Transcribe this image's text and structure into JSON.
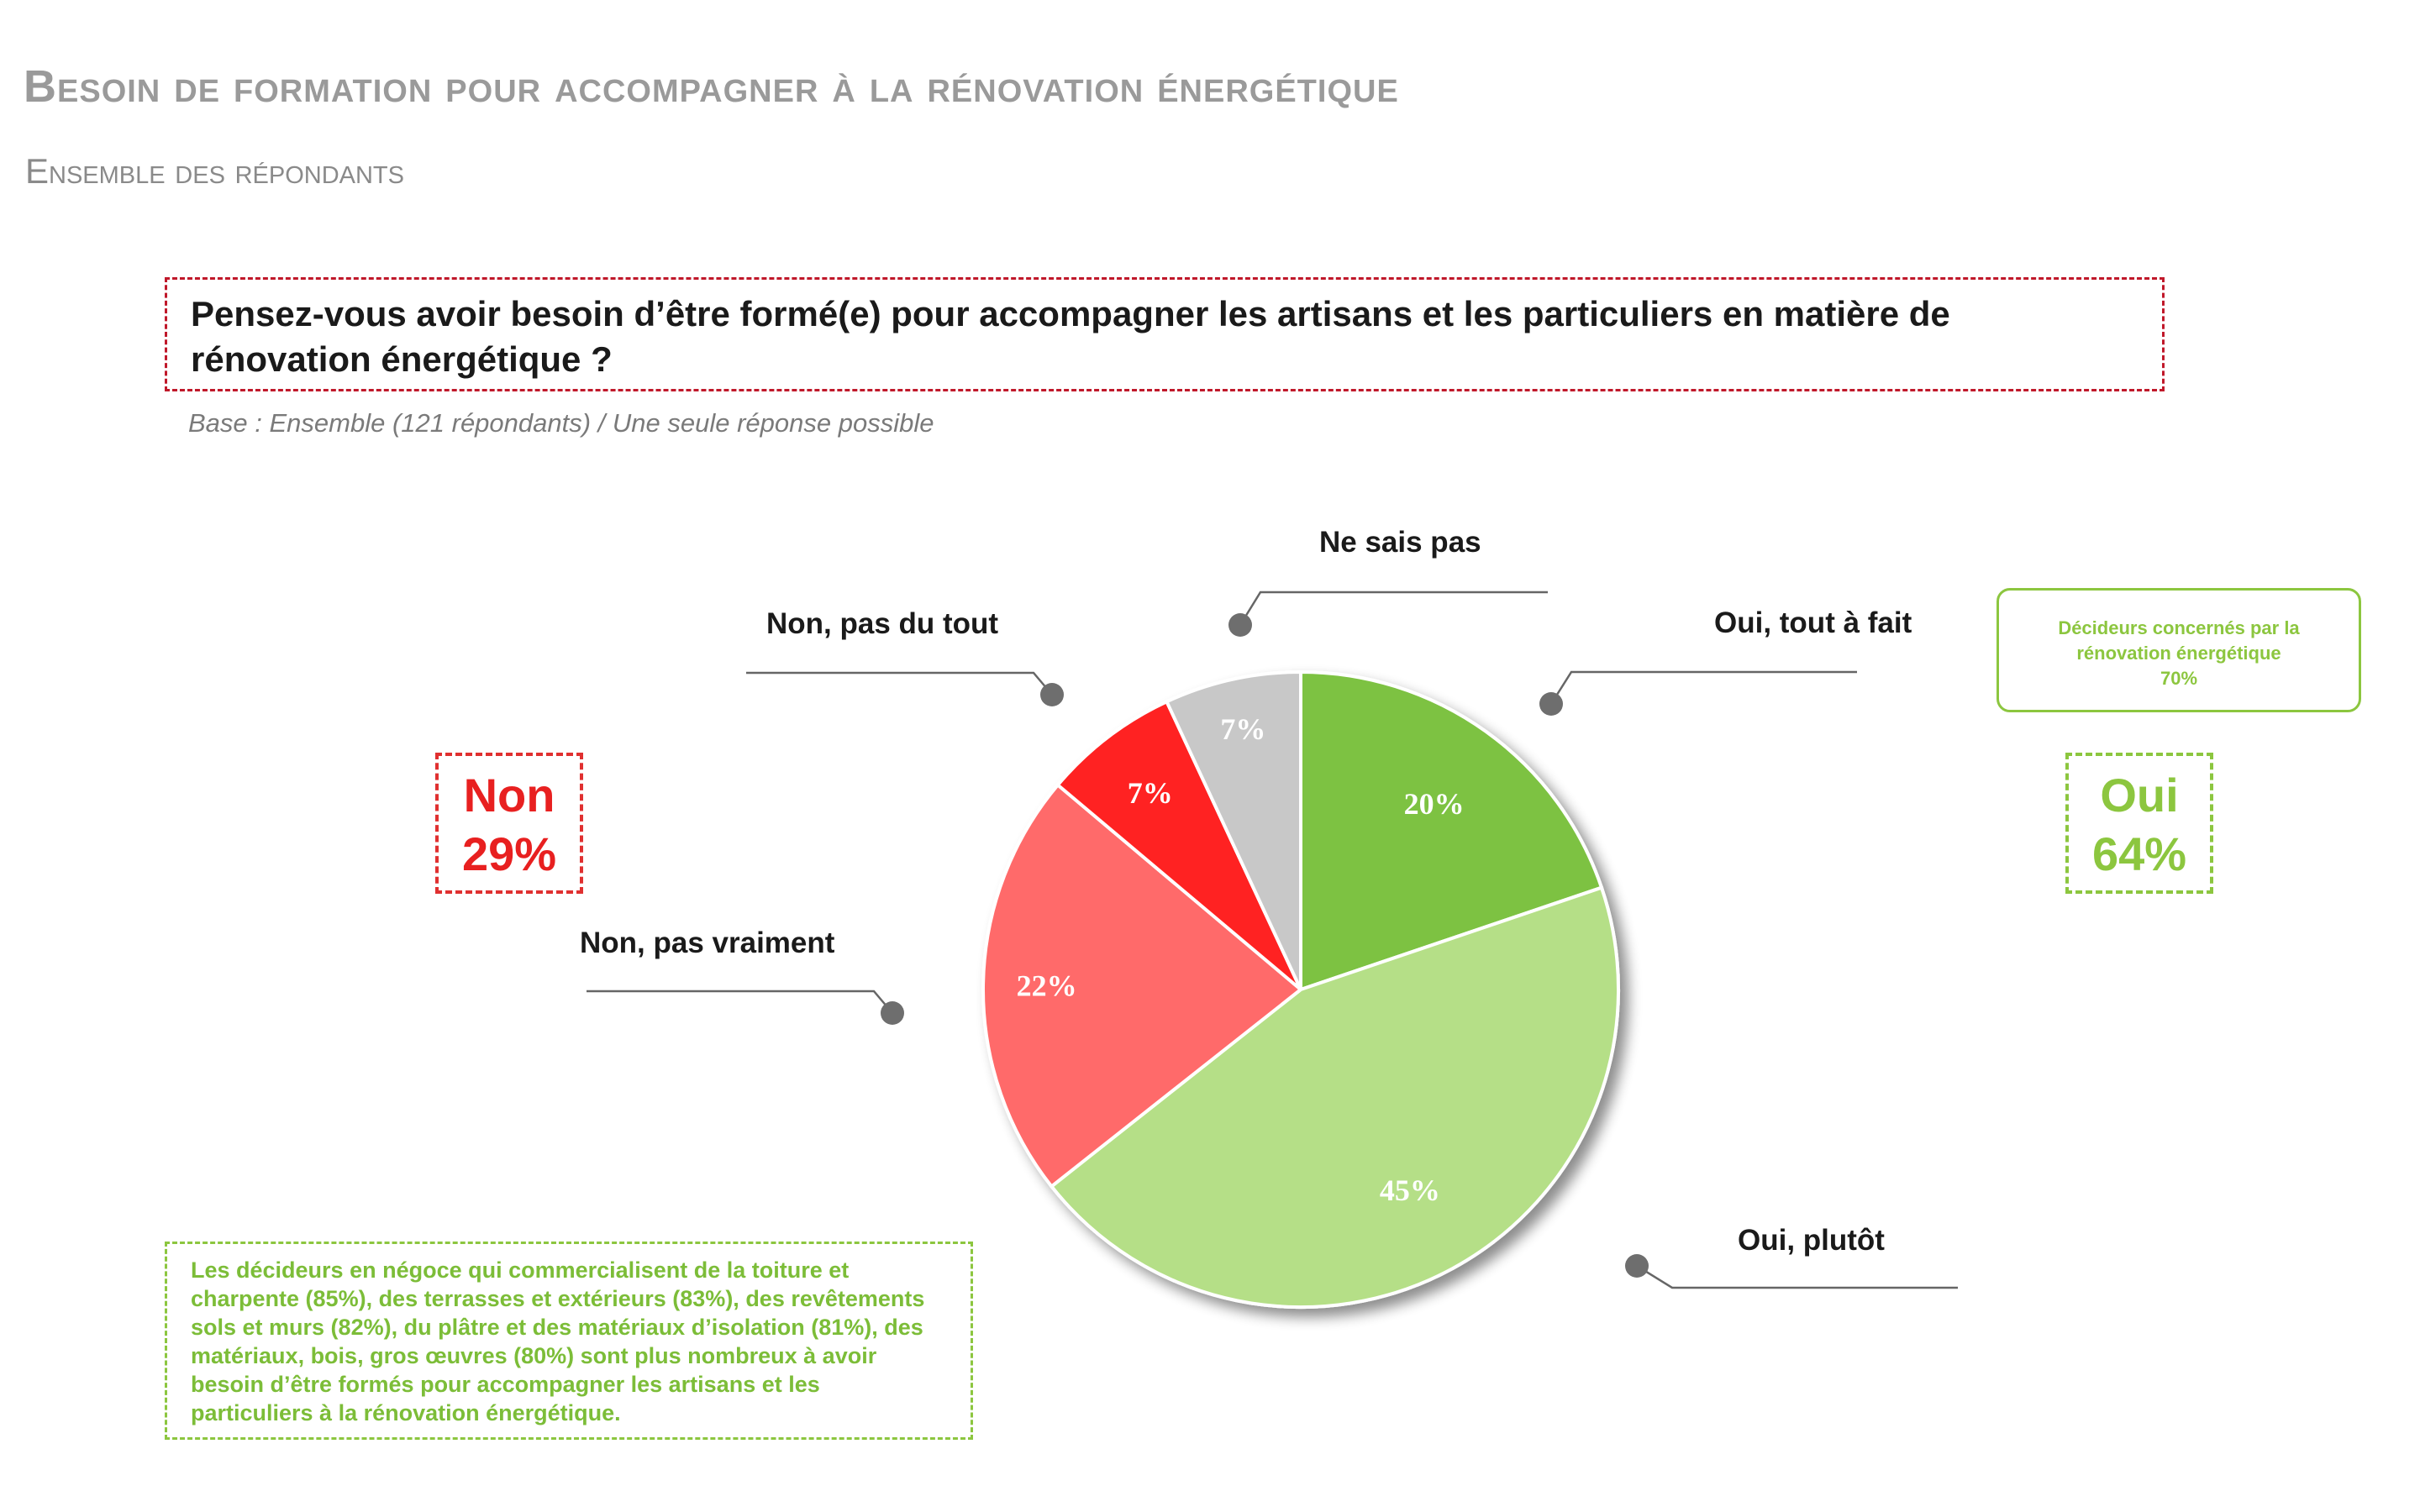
{
  "title": "Besoin de formation pour accompagner à la rénovation énergétique",
  "subtitle": "Ensemble des répondants",
  "question": "Pensez-vous avoir besoin d’être formé(e) pour accompagner les artisans et les particuliers en matière de rénovation énergétique ?",
  "base_note": "Base : Ensemble (121 répondants) / Une seule réponse possible",
  "summary_non": {
    "label": "Non",
    "value": "29%"
  },
  "summary_oui": {
    "label": "Oui",
    "value": "64%"
  },
  "callout": {
    "text": "Décideurs concernés par la rénovation énergétique",
    "value": "70%"
  },
  "note": "Les décideurs en négoce qui commercialisent de la toiture et charpente (85%), des terrasses et extérieurs (83%), des revêtements sols et murs (82%), du plâtre et des matériaux d’isolation (81%), des matériaux, bois, gros œuvres (80%) sont plus nombreux à avoir besoin d’être formés pour accompagner les artisans et les particuliers à la rénovation énergétique.",
  "colors": {
    "oui_tout_a_fait": "#7dc242",
    "oui_plutot": "#b5df87",
    "non_pas_vraiment": "#ff6b6b",
    "non_pas_du_tout": "#ff2222",
    "ne_sais_pas": "#c8c8c8",
    "leader": "#666666"
  },
  "chart_data": {
    "type": "pie",
    "categories": [
      "Oui, tout à fait",
      "Oui, plutôt",
      "Non, pas vraiment",
      "Non, pas du tout",
      "Ne sais pas"
    ],
    "values": [
      20,
      45,
      22,
      7,
      7
    ],
    "value_labels": [
      "20%",
      "45%",
      "22%",
      "7%",
      "7%"
    ]
  }
}
